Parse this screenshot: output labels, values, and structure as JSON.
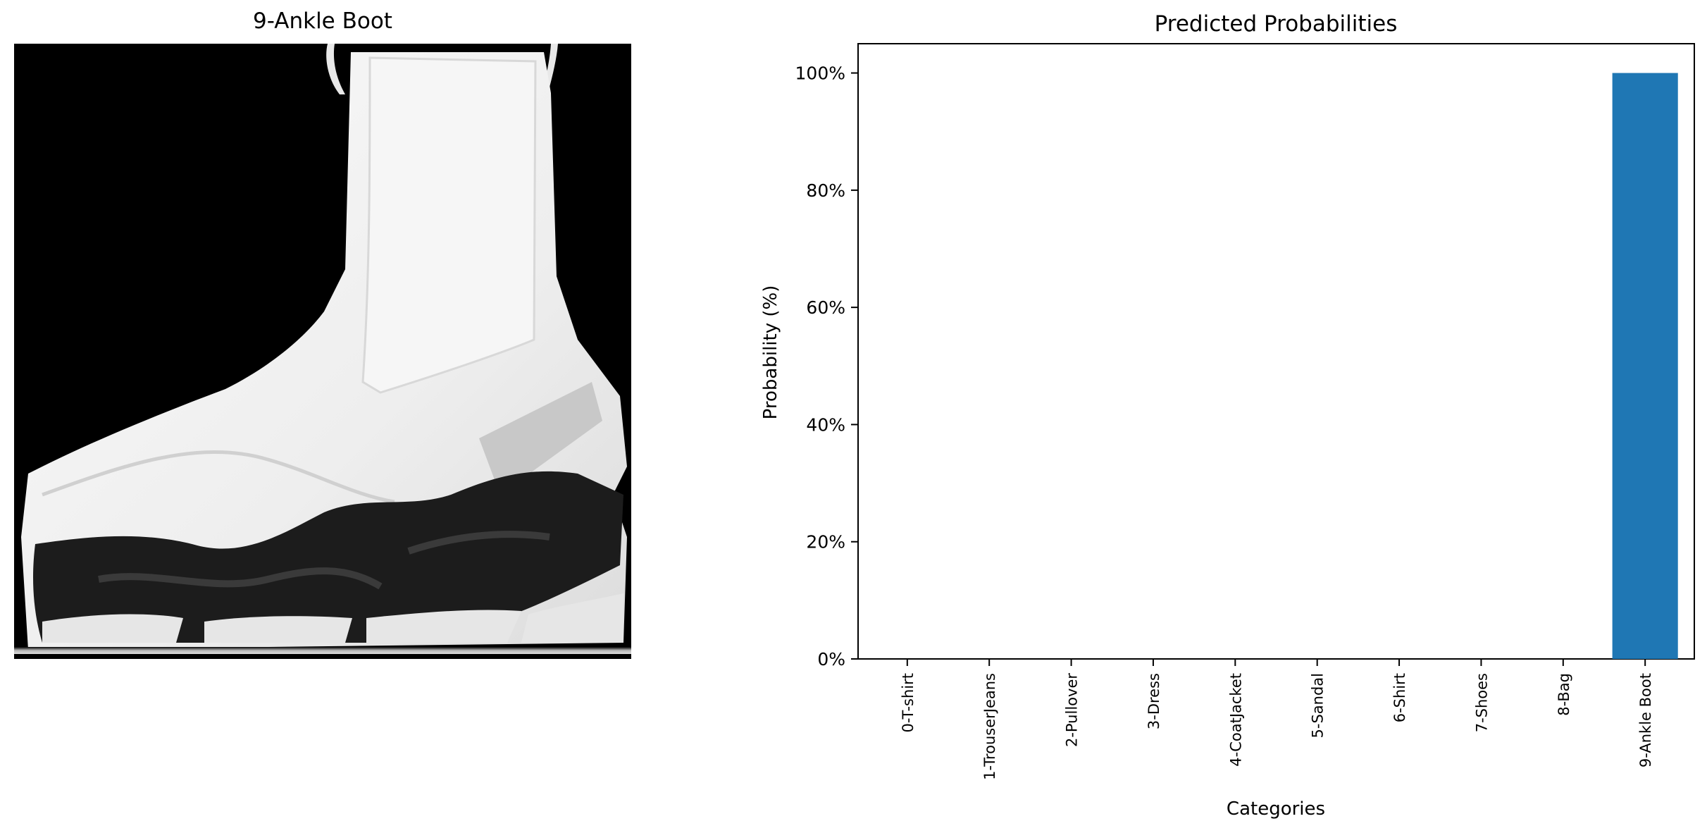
{
  "image_panel": {
    "title": "9-Ankle Boot",
    "subject": "grayscale ankle boot photo",
    "colors": {
      "background": "#000000",
      "boot": "#f2f2f2",
      "sole": "#1c1c1c"
    }
  },
  "chart_data": {
    "type": "bar",
    "title": "Predicted Probabilities",
    "xlabel": "Categories",
    "ylabel": "Probability (%)",
    "categories": [
      "0-T-shirt",
      "1-TrouserJeans",
      "2-Pullover",
      "3-Dress",
      "4-CoatJacket",
      "5-Sandal",
      "6-Shirt",
      "7-Shoes",
      "8-Bag",
      "9-Ankle Boot"
    ],
    "values": [
      0,
      0,
      0,
      0,
      0,
      0,
      0,
      0,
      0,
      100
    ],
    "ylim": [
      0,
      105
    ],
    "yticks": [
      0,
      20,
      40,
      60,
      80,
      100
    ],
    "ytick_labels": [
      "0%",
      "20%",
      "40%",
      "60%",
      "80%",
      "100%"
    ],
    "bar_color": "#1f77b4",
    "grid": false
  }
}
